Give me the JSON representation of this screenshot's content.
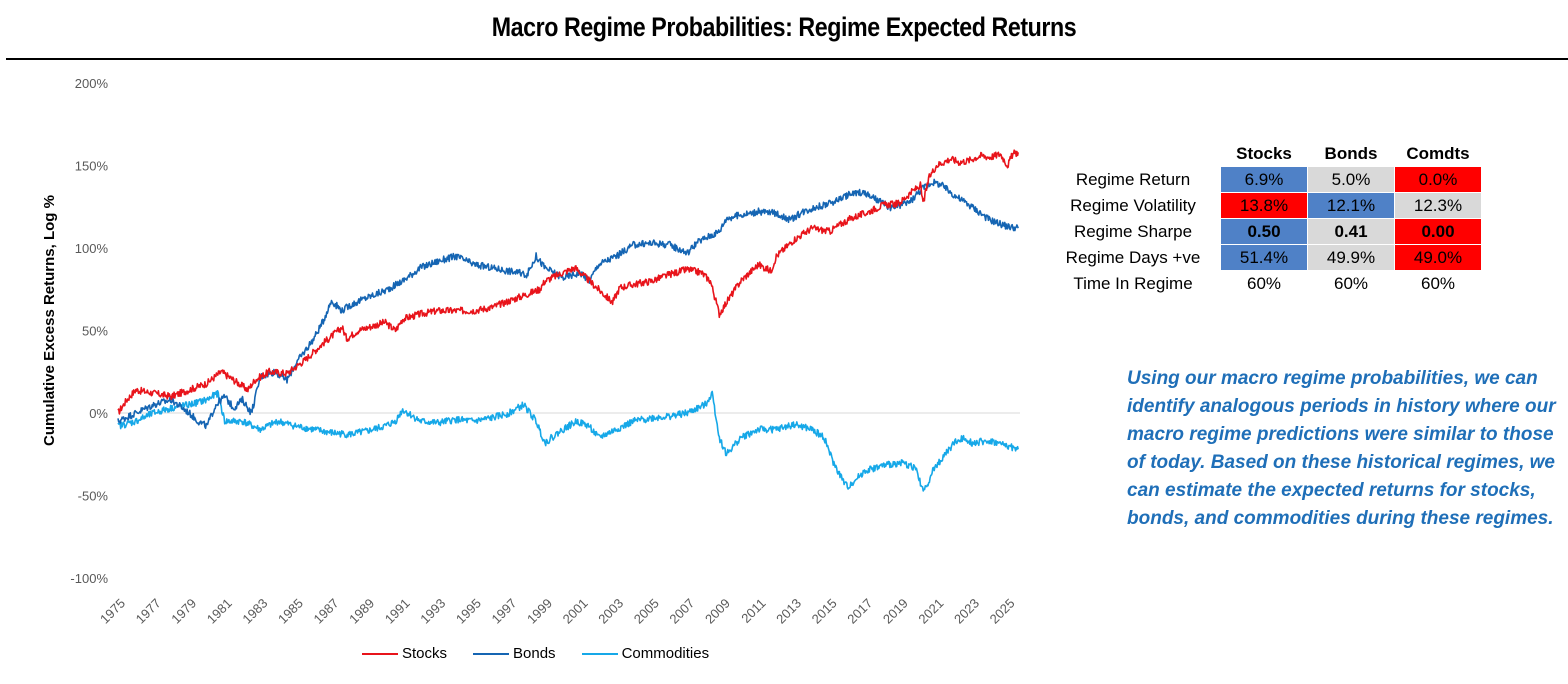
{
  "chart_data": {
    "type": "line",
    "title": "Macro Regime Probabilities: Regime Expected Returns",
    "xlabel": "",
    "ylabel": "Cumulative Excess Returns, Log %",
    "xlim": [
      1975,
      2025.7
    ],
    "ylim": [
      -100,
      200
    ],
    "yticks": [
      -100,
      -50,
      0,
      50,
      100,
      150,
      200
    ],
    "ytick_labels": [
      "-100%",
      "-50%",
      "0%",
      "50%",
      "100%",
      "150%",
      "200%"
    ],
    "xticks": [
      1975,
      1977,
      1979,
      1981,
      1983,
      1985,
      1987,
      1989,
      1991,
      1993,
      1995,
      1997,
      1999,
      2001,
      2003,
      2005,
      2007,
      2009,
      2011,
      2013,
      2015,
      2017,
      2019,
      2021,
      2023,
      2025
    ],
    "series": [
      {
        "name": "Stocks",
        "color": "#e8141b",
        "x": [
          1975,
          1975.5,
          1976,
          1977,
          1978,
          1979,
          1980,
          1980.8,
          1981.5,
          1982.3,
          1982.7,
          1983.5,
          1984.5,
          1985.5,
          1986.5,
          1987.6,
          1987.85,
          1988.5,
          1990,
          1990.6,
          1991,
          1992,
          1993,
          1994,
          1995,
          1996,
          1997,
          1998,
          1998.7,
          1999,
          2000,
          2000.7,
          2001.5,
          2002,
          2002.8,
          2003.2,
          2004,
          2005,
          2006,
          2007,
          2007.8,
          2008.3,
          2008.8,
          2009.2,
          2010,
          2011,
          2011.7,
          2012,
          2013,
          2014,
          2015,
          2015.7,
          2016.2,
          2017,
          2018,
          2018.9,
          2019.5,
          2020.1,
          2020.25,
          2020.6,
          2021,
          2021.8,
          2022.3,
          2022.8,
          2023.5,
          2024,
          2024.6,
          2025,
          2025.3,
          2025.6
        ],
        "y": [
          0,
          8,
          14,
          12,
          10,
          14,
          18,
          25,
          20,
          14,
          20,
          25,
          24,
          32,
          42,
          52,
          45,
          50,
          55,
          50,
          57,
          60,
          62,
          62,
          62,
          64,
          68,
          72,
          75,
          80,
          85,
          88,
          80,
          75,
          67,
          76,
          78,
          80,
          84,
          87,
          85,
          80,
          60,
          67,
          80,
          90,
          86,
          95,
          105,
          112,
          110,
          115,
          118,
          121,
          126,
          127,
          133,
          138,
          127,
          143,
          150,
          154,
          152,
          153,
          156,
          155,
          157,
          150,
          157,
          158
        ]
      },
      {
        "name": "Bonds",
        "color": "#1565b3",
        "x": [
          1975,
          1976,
          1977,
          1978,
          1979,
          1979.5,
          1980,
          1980.5,
          1981,
          1981.5,
          1982,
          1982.5,
          1983,
          1983.8,
          1984.5,
          1985,
          1986,
          1986.5,
          1987,
          1987.6,
          1988,
          1989,
          1990,
          1991,
          1992,
          1993,
          1994,
          1995,
          1996,
          1997,
          1998,
          1998.5,
          1999,
          2000,
          2001,
          2001.5,
          2002,
          2003,
          2004,
          2005,
          2006,
          2007,
          2007.5,
          2008,
          2008.8,
          2009.2,
          2010,
          2011,
          2012,
          2012.8,
          2013.5,
          2014,
          2015,
          2016,
          2016.8,
          2017.5,
          2018.5,
          2019.5,
          2020.2,
          2020.8,
          2021.3,
          2022,
          2023,
          2024,
          2025,
          2025.6
        ],
        "y": [
          -5,
          0,
          5,
          8,
          0,
          -5,
          -8,
          5,
          10,
          3,
          8,
          0,
          22,
          25,
          20,
          30,
          45,
          55,
          68,
          62,
          65,
          70,
          74,
          80,
          88,
          92,
          95,
          90,
          88,
          86,
          84,
          95,
          88,
          82,
          85,
          80,
          90,
          95,
          102,
          103,
          102,
          97,
          103,
          106,
          110,
          118,
          120,
          122,
          121,
          117,
          122,
          124,
          127,
          132,
          134,
          130,
          124,
          128,
          136,
          140,
          138,
          132,
          125,
          117,
          113,
          112
        ]
      },
      {
        "name": "Commodities",
        "color": "#16a8e8",
        "x": [
          1975,
          1976,
          1977,
          1978,
          1979,
          1980,
          1980.6,
          1981,
          1982,
          1983,
          1984,
          1985,
          1986,
          1987,
          1988,
          1989,
          1990,
          1990.6,
          1991,
          1992,
          1993,
          1994,
          1995,
          1996,
          1997,
          1997.8,
          1998.5,
          1999,
          2000,
          2000.8,
          2001.5,
          2002,
          2003,
          2004,
          2005,
          2006,
          2007,
          2008,
          2008.4,
          2008.8,
          2009.2,
          2010,
          2011,
          2012,
          2013,
          2014,
          2014.7,
          2015.2,
          2015.7,
          2016,
          2017,
          2018,
          2019,
          2019.8,
          2020.3,
          2020.8,
          2021.5,
          2022,
          2022.6,
          2023,
          2024,
          2025,
          2025.6
        ],
        "y": [
          -8,
          -5,
          0,
          3,
          5,
          8,
          12,
          -5,
          -5,
          -10,
          -5,
          -8,
          -10,
          -12,
          -13,
          -11,
          -8,
          -5,
          2,
          -5,
          -6,
          -4,
          -5,
          -3,
          0,
          5,
          -5,
          -18,
          -10,
          -5,
          -8,
          -15,
          -10,
          -5,
          -3,
          -2,
          0,
          5,
          12,
          -15,
          -25,
          -15,
          -10,
          -10,
          -7,
          -10,
          -15,
          -30,
          -40,
          -45,
          -35,
          -32,
          -30,
          -33,
          -48,
          -35,
          -25,
          -18,
          -15,
          -18,
          -17,
          -20,
          -22
        ]
      }
    ]
  },
  "table": {
    "headers": [
      "Stocks",
      "Bonds",
      "Comdts"
    ],
    "rows": [
      {
        "label": "Regime Return",
        "values": [
          "6.9%",
          "5.0%",
          "0.0%"
        ],
        "colors": [
          "blue",
          "grey",
          "red"
        ],
        "bold": false
      },
      {
        "label": "Regime Volatility",
        "values": [
          "13.8%",
          "12.1%",
          "12.3%"
        ],
        "colors": [
          "red",
          "blue",
          "grey"
        ],
        "bold": false
      },
      {
        "label": "Regime Sharpe",
        "values": [
          "0.50",
          "0.41",
          "0.00"
        ],
        "colors": [
          "blue",
          "grey",
          "red"
        ],
        "bold": true
      },
      {
        "label": "Regime Days +ve",
        "values": [
          "51.4%",
          "49.9%",
          "49.0%"
        ],
        "colors": [
          "blue",
          "grey",
          "red"
        ],
        "bold": false
      },
      {
        "label": "Time In Regime",
        "values": [
          "60%",
          "60%",
          "60%"
        ],
        "colors": [
          "none",
          "none",
          "none"
        ],
        "bold": false
      }
    ]
  },
  "note": "Using our macro regime probabilities, we can identify analogous periods in history where our macro regime predictions were similar to those of today. Based on these historical regimes, we can estimate the expected returns for stocks, bonds, and commodities during these regimes."
}
